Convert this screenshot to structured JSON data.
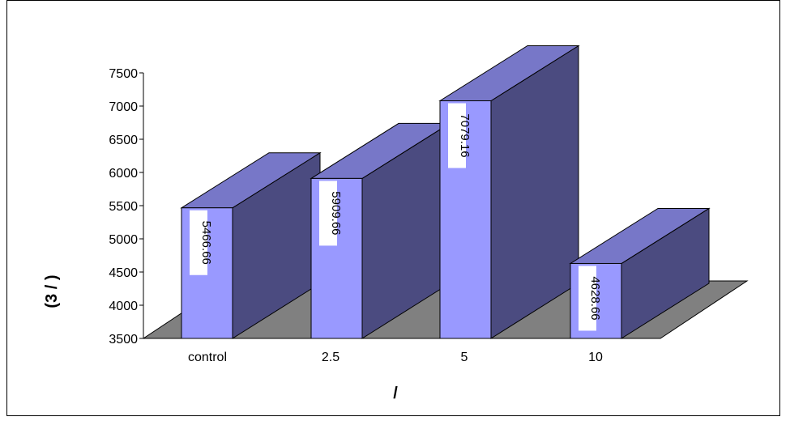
{
  "chart_data": {
    "type": "bar",
    "style": "3d",
    "categories": [
      "control",
      "2.5",
      "5",
      "10"
    ],
    "values": [
      5466.66,
      5909.66,
      7079.16,
      4628.66
    ],
    "data_labels": [
      "5466.66",
      "5909.66",
      "7079.16",
      "4628.66"
    ],
    "ylim": [
      3500,
      7500
    ],
    "yticks": [
      "3500",
      "4000",
      "4500",
      "5000",
      "5500",
      "6000",
      "6500",
      "7000",
      "7500"
    ],
    "xlabel": "/",
    "ylabel": "(3   /   )",
    "grid": false,
    "legend": "none",
    "colors": {
      "bar_front": "#9999ff",
      "bar_top": "#7777c8",
      "bar_side": "#4b4b80",
      "floor": "#808080",
      "label_bg": "#ffffff"
    }
  }
}
